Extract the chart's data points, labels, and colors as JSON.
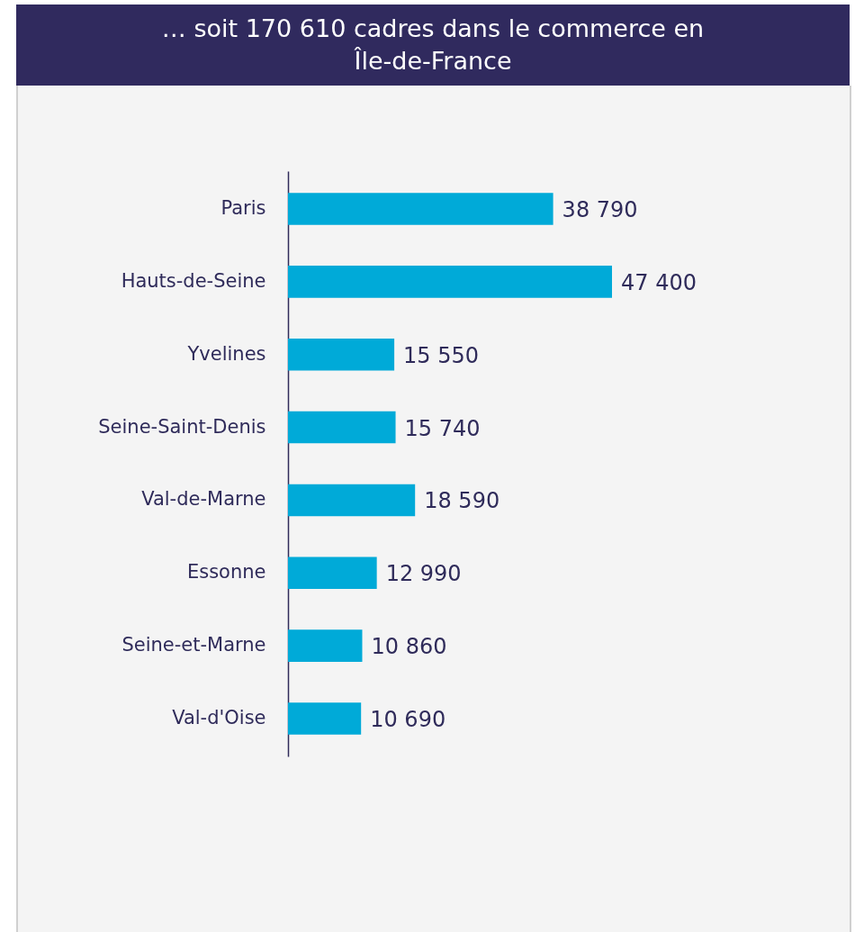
{
  "chart_data": {
    "type": "bar",
    "title": "… soit 170 610 cadres dans le commerce en Île-de-France",
    "orientation": "horizontal",
    "categories": [
      "Paris",
      "Hauts-de-Seine",
      "Yvelines",
      "Seine-Saint-Denis",
      "Val-de-Marne",
      "Essonne",
      "Seine-et-Marne",
      "Val-d'Oise"
    ],
    "values": [
      38790,
      47400,
      15550,
      15740,
      18590,
      12990,
      10860,
      10690
    ],
    "value_labels": [
      "38 790",
      "47 400",
      "15 550",
      "15 740",
      "18 590",
      "12 990",
      "10 860",
      "10 690"
    ],
    "color": "#00aad8"
  }
}
